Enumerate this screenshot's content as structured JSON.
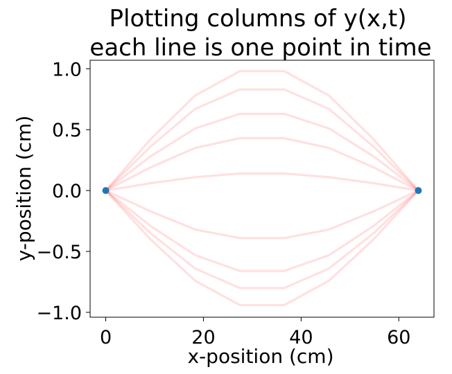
{
  "chart_data": {
    "type": "line",
    "title": [
      "Plotting columns of y(x,t)",
      "each line is one point in time"
    ],
    "xlabel": "x-position (cm)",
    "ylabel": "y-position (cm)",
    "xlim": [
      -3.2,
      67.2
    ],
    "ylim": [
      -1.04,
      1.07
    ],
    "x_ticks": [
      0,
      20,
      40,
      60
    ],
    "y_ticks": [
      -1.0,
      -0.5,
      0.0,
      0.5,
      1.0
    ],
    "x_tick_labels": [
      "0",
      "20",
      "40",
      "60"
    ],
    "y_tick_labels": [
      "−1.0",
      "−0.5",
      "0.0",
      "0.5",
      "1.0"
    ],
    "grid": false,
    "line_color": "#ff0000",
    "line_alpha": 0.12,
    "marker_color": "#1f77b4",
    "x": [
      0,
      9.14,
      18.29,
      27.43,
      36.57,
      45.71,
      54.86,
      64
    ],
    "series": [
      {
        "values": [
          0,
          0.42,
          0.78,
          0.98,
          0.98,
          0.78,
          0.42,
          0
        ]
      },
      {
        "values": [
          0,
          0.36,
          0.67,
          0.83,
          0.83,
          0.67,
          0.36,
          0
        ]
      },
      {
        "values": [
          0,
          0.28,
          0.51,
          0.63,
          0.63,
          0.51,
          0.28,
          0
        ]
      },
      {
        "values": [
          0,
          0.19,
          0.35,
          0.43,
          0.43,
          0.35,
          0.19,
          0
        ]
      },
      {
        "values": [
          0,
          0.06,
          0.11,
          0.14,
          0.14,
          0.11,
          0.06,
          0
        ]
      },
      {
        "values": [
          0,
          -0.17,
          -0.32,
          -0.39,
          -0.39,
          -0.32,
          -0.17,
          0
        ]
      },
      {
        "values": [
          0,
          -0.29,
          -0.53,
          -0.66,
          -0.66,
          -0.53,
          -0.29,
          0
        ]
      },
      {
        "values": [
          0,
          -0.35,
          -0.64,
          -0.8,
          -0.8,
          -0.64,
          -0.35,
          0
        ]
      },
      {
        "values": [
          0,
          -0.4,
          -0.74,
          -0.94,
          -0.94,
          -0.74,
          -0.4,
          0
        ]
      }
    ],
    "endpoints": [
      {
        "x": 0,
        "y": 0
      },
      {
        "x": 64,
        "y": 0
      }
    ]
  }
}
